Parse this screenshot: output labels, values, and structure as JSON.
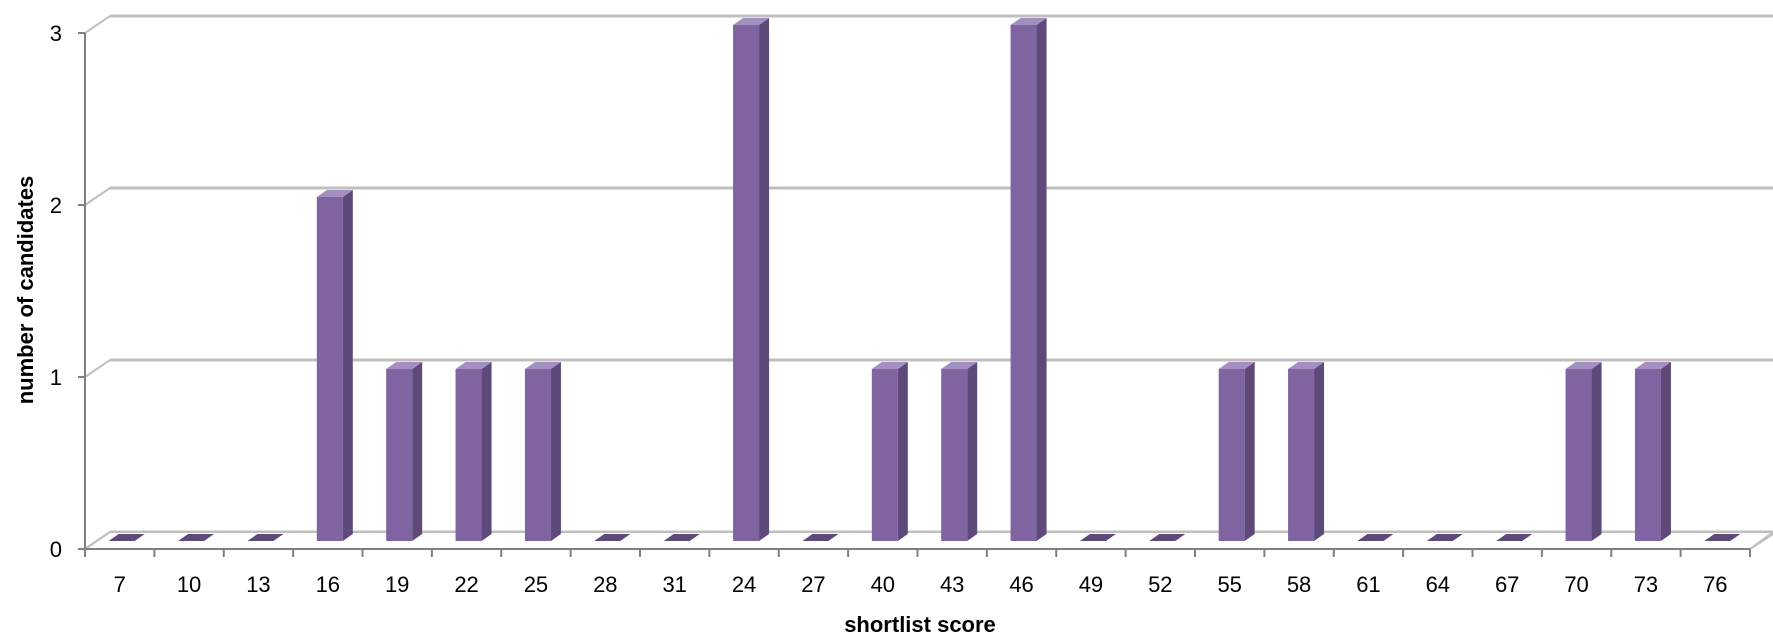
{
  "chart_data": {
    "type": "bar",
    "categories": [
      "7",
      "10",
      "13",
      "16",
      "19",
      "22",
      "25",
      "28",
      "31",
      "24",
      "27",
      "40",
      "43",
      "46",
      "49",
      "52",
      "55",
      "58",
      "61",
      "64",
      "67",
      "70",
      "73",
      "76"
    ],
    "values": [
      0,
      0,
      0,
      2,
      1,
      1,
      1,
      0,
      0,
      3,
      0,
      1,
      1,
      3,
      0,
      0,
      1,
      1,
      0,
      0,
      0,
      1,
      1,
      0
    ],
    "xlabel": "shortlist score",
    "ylabel": "number of candidates",
    "ylim": [
      0,
      3
    ],
    "yticks": [
      "0",
      "1",
      "2",
      "3"
    ],
    "grid": true,
    "legend": "none",
    "colors": {
      "bar_front": "#8064A2",
      "bar_side": "#5E4A7A",
      "bar_top": "#A390C0",
      "gridline": "#BFBFBF",
      "axis": "#808080"
    }
  }
}
